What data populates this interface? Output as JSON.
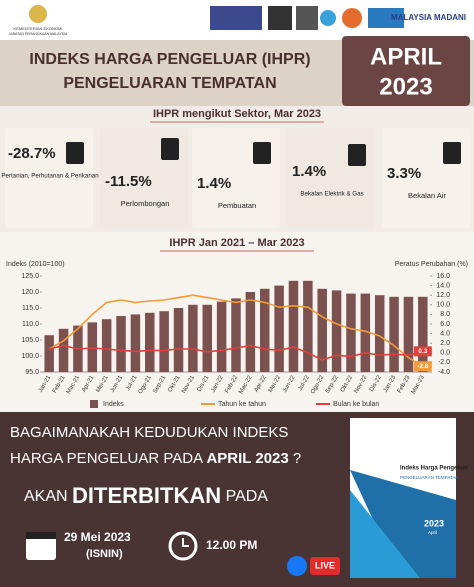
{
  "header": {
    "ministry": "KEMENTERIAN EKONOMI",
    "department": "JABATAN PERANGKAAN MALAYSIA",
    "brand": "MALAYSIA MADANI",
    "title_line1": "INDEKS HARGA PENGELUAR (IHPR)",
    "title_line2": "PENGELUARAN TEMPATAN",
    "month": "APRIL",
    "year": "2023"
  },
  "sectors": {
    "title": "IHPR mengikut Sektor, Mar 2023",
    "items": [
      {
        "value": "-28.7%",
        "label": "Pertanian, Perhutanan & Perikanan"
      },
      {
        "value": "-11.5%",
        "label": "Perlombongan"
      },
      {
        "value": "1.4%",
        "label": "Pembuatan"
      },
      {
        "value": "1.4%",
        "label": "Bekalan Elektrik & Gas"
      },
      {
        "value": "3.3%",
        "label": "Bekalan Air"
      }
    ]
  },
  "chart_data": {
    "type": "bar_line",
    "title": "IHPR Jan 2021 – Mar 2023",
    "ylabel": "Indeks (2010=100)",
    "y2label": "Peratus Perubahan (%)",
    "categories": [
      "Jan-21",
      "Feb-21",
      "Mac-21",
      "Apr-21",
      "Mei-21",
      "Jun-21",
      "Jul-21",
      "Ogo-21",
      "Sep-21",
      "Okt-21",
      "Nov-21",
      "Dis-21",
      "Jan-22",
      "Feb-22",
      "Mac-22",
      "Apr-22",
      "Mei-22",
      "Jun-22",
      "Jul-22",
      "Ogo-22",
      "Sep-22",
      "Okt-22",
      "Nov-22",
      "Dis-22",
      "Jan-23",
      "Feb-23",
      "Mac-23"
    ],
    "series": [
      {
        "name": "Indeks",
        "color": "#7b5250",
        "type": "bar",
        "values": [
          106.5,
          108.5,
          109.5,
          110.5,
          111.5,
          112.5,
          113,
          113.5,
          114,
          115,
          116,
          116,
          117,
          118,
          120,
          121,
          122,
          123.5,
          123.5,
          121,
          120.5,
          119.5,
          119.5,
          119,
          118.5,
          118.5,
          118.5
        ]
      },
      {
        "name": "Tahun ke tahun",
        "color": "#f39a3b",
        "type": "line",
        "axis": "y2",
        "values": [
          0.8,
          2.5,
          5,
          8,
          10.5,
          11,
          10.5,
          10.8,
          11,
          11.5,
          12,
          11.5,
          11,
          10.5,
          11,
          10.5,
          9.5,
          9.8,
          9.5,
          7.5,
          6,
          5,
          4.5,
          3.5,
          1.5,
          -1,
          -2.8
        ]
      },
      {
        "name": "Bulan ke bulan",
        "color": "#e2403a",
        "type": "line",
        "axis": "y2",
        "values": [
          0.8,
          1.5,
          0.8,
          1,
          0.8,
          0.5,
          0.3,
          0.5,
          0.5,
          0.8,
          0.8,
          0.2,
          0.5,
          1,
          1.5,
          0.8,
          0.5,
          1.2,
          0,
          -1.5,
          -0.5,
          -0.8,
          0,
          -0.5,
          -0.3,
          -0.5,
          0.3
        ]
      }
    ],
    "ylim": [
      95,
      125
    ],
    "yticks": [
      {
        "value": 95,
        "label": "95.0"
      },
      {
        "value": 100,
        "label": "100.0"
      },
      {
        "value": 105,
        "label": "105.0"
      },
      {
        "value": 110,
        "label": "110.0"
      },
      {
        "value": 115,
        "label": "115.0"
      },
      {
        "value": 120,
        "label": "120.0"
      },
      {
        "value": 125,
        "label": "125.0"
      }
    ],
    "y2lim": [
      -4,
      16
    ],
    "y2ticks": [
      {
        "value": -4,
        "label": "-4.0"
      },
      {
        "value": -2,
        "label": "-2.0"
      },
      {
        "value": 0,
        "label": "0.0"
      },
      {
        "value": 2,
        "label": "2.0"
      },
      {
        "value": 4,
        "label": "4.0"
      },
      {
        "value": 6,
        "label": "6.0"
      },
      {
        "value": 8,
        "label": "8.0"
      },
      {
        "value": 10,
        "label": "10.0"
      },
      {
        "value": 12,
        "label": "12.0"
      },
      {
        "value": 14,
        "label": "14.0"
      },
      {
        "value": 16,
        "label": "16.0"
      }
    ],
    "grid": false
  },
  "footer": {
    "question_line1": "BAGAIMANAKAH KEDUDUKAN INDEKS",
    "question_line2": "HARGA PENGELUAR PADA",
    "question_highlight": "APRIL 2023",
    "question_mark": "?",
    "announce_pre": "AKAN",
    "announce_main": "DITERBITKAN",
    "announce_post": "PADA",
    "date": "29 Mei 2023",
    "day": "(ISNIN)",
    "time": "12.00 PM",
    "live": "LIVE"
  },
  "book": {
    "title": "Indeks Harga Pengeluar",
    "subtitle": "PENGELUARAN TEMPATAN",
    "year": "2023",
    "month": "April"
  }
}
